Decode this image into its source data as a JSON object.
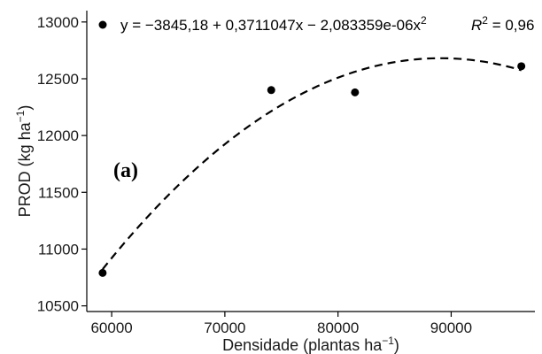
{
  "chart_data": {
    "type": "scatter",
    "panel_label": "(a)",
    "xlabel": "Densidade (plantas ha",
    "xlabel_sup": "−1",
    "xlabel_close": ")",
    "ylabel": "PROD (kg ha",
    "ylabel_sup": "−1",
    "ylabel_close": ")",
    "xlim": [
      57800,
      97400
    ],
    "ylim": [
      10450,
      13100
    ],
    "xticks": [
      60000,
      70000,
      80000,
      90000
    ],
    "yticks": [
      10500,
      11000,
      11500,
      12000,
      12500,
      13000
    ],
    "points": [
      {
        "x": 59200,
        "y": 10790
      },
      {
        "x": 74100,
        "y": 12400
      },
      {
        "x": 81500,
        "y": 12380
      },
      {
        "x": 96200,
        "y": 12610
      }
    ],
    "fit": {
      "style": "dashed",
      "intercept": -3845.18,
      "b1": 0.3711047,
      "b2": -2.083359e-06,
      "x_range": [
        59200,
        96200
      ]
    },
    "legend": {
      "equation_prefix": "y = −3845,18 + 0,3711047x − 2,083359e-06x",
      "equation_sup": "2",
      "r2_label": "R",
      "r2_sup": "2",
      "r2_value": " = 0,96",
      "position": "top"
    },
    "grid": false
  }
}
